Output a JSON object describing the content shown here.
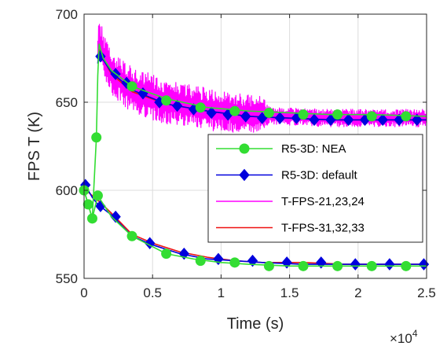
{
  "chart_data": {
    "type": "line",
    "xlabel": "Time (s)",
    "ylabel": "FPS T (K)",
    "x_multiplier": "×10",
    "x_multiplier_exponent": "4",
    "xlim": [
      0,
      25000
    ],
    "ylim": [
      550,
      700
    ],
    "xticks": [
      0,
      5000,
      10000,
      15000,
      20000,
      25000
    ],
    "xtick_labels": [
      "0",
      "0.5",
      "1",
      "1.5",
      "2",
      "2.5"
    ],
    "yticks": [
      550,
      600,
      650,
      700
    ],
    "ytick_labels": [
      "550",
      "600",
      "650",
      "700"
    ],
    "grid": true,
    "legend_position": "right",
    "series": [
      {
        "name": "R5-3D: NEA",
        "color": "#33dd33",
        "marker": "circle",
        "lines": [
          {
            "x": [
              0,
              300,
              600,
              900,
              1000,
              1100,
              1400,
              2000,
              3500,
              6000,
              9000,
              12000,
              15000,
              18000,
              21000,
              25000
            ],
            "y": [
              600,
              592,
              584,
              630,
              665,
              683,
              675,
              668,
              659,
              652,
              647,
              645,
              644,
              643,
              643,
              642
            ]
          },
          {
            "x": [
              0,
              300,
              600,
              1000,
              1500,
              2000,
              3500,
              5000,
              6000,
              8000,
              10000,
              12000,
              15000,
              18000,
              21000,
              25000
            ],
            "y": [
              600,
              592,
              584,
              597,
              591,
              585,
              574,
              568,
              564,
              561,
              559,
              558,
              557,
              557,
              557,
              557
            ]
          }
        ],
        "markers": [
          {
            "x": 0,
            "y": 600
          },
          {
            "x": 300,
            "y": 592
          },
          {
            "x": 600,
            "y": 584
          },
          {
            "x": 900,
            "y": 630
          },
          {
            "x": 3500,
            "y": 659
          },
          {
            "x": 6000,
            "y": 651
          },
          {
            "x": 8500,
            "y": 647
          },
          {
            "x": 11000,
            "y": 645
          },
          {
            "x": 13500,
            "y": 644
          },
          {
            "x": 16000,
            "y": 643
          },
          {
            "x": 18500,
            "y": 643
          },
          {
            "x": 21000,
            "y": 642
          },
          {
            "x": 23500,
            "y": 642
          },
          {
            "x": 1000,
            "y": 597
          },
          {
            "x": 3500,
            "y": 574
          },
          {
            "x": 6000,
            "y": 564
          },
          {
            "x": 8500,
            "y": 560
          },
          {
            "x": 11000,
            "y": 559
          },
          {
            "x": 13500,
            "y": 557
          },
          {
            "x": 16000,
            "y": 557
          },
          {
            "x": 18500,
            "y": 557
          },
          {
            "x": 21000,
            "y": 557
          },
          {
            "x": 23500,
            "y": 557
          }
        ]
      },
      {
        "name": "R5-3D: default",
        "color": "#0000dd",
        "marker": "diamond",
        "lines": [
          {
            "x": [
              1000,
              1100,
              1400,
              2000,
              3500,
              6000,
              9000,
              12000,
              15000,
              18000,
              21000,
              25000
            ],
            "y": [
              672,
              678,
              674,
              667,
              657,
              649,
              645,
              642,
              641,
              640,
              640,
              640
            ]
          },
          {
            "x": [
              0,
              300,
              600,
              1000,
              1500,
              2000,
              3500,
              5000,
              7000,
              9000,
              11000,
              13000,
              16000,
              19000,
              22000,
              25000
            ],
            "y": [
              603,
              600,
              596,
              592,
              589,
              586,
              574,
              569,
              564,
              561,
              560,
              559,
              558,
              558,
              558,
              558
            ]
          }
        ],
        "markers": [
          {
            "x": 1200,
            "y": 676
          },
          {
            "x": 2300,
            "y": 666
          },
          {
            "x": 3100,
            "y": 661
          },
          {
            "x": 4300,
            "y": 655
          },
          {
            "x": 5500,
            "y": 650
          },
          {
            "x": 6800,
            "y": 648
          },
          {
            "x": 8000,
            "y": 646
          },
          {
            "x": 9300,
            "y": 644
          },
          {
            "x": 10500,
            "y": 643
          },
          {
            "x": 11800,
            "y": 642
          },
          {
            "x": 13000,
            "y": 641
          },
          {
            "x": 14300,
            "y": 641
          },
          {
            "x": 15500,
            "y": 641
          },
          {
            "x": 16800,
            "y": 640
          },
          {
            "x": 18000,
            "y": 640
          },
          {
            "x": 19300,
            "y": 640
          },
          {
            "x": 20500,
            "y": 640
          },
          {
            "x": 21800,
            "y": 640
          },
          {
            "x": 23000,
            "y": 640
          },
          {
            "x": 24300,
            "y": 640
          },
          {
            "x": 100,
            "y": 603
          },
          {
            "x": 1200,
            "y": 591
          },
          {
            "x": 2300,
            "y": 585
          },
          {
            "x": 4800,
            "y": 570
          },
          {
            "x": 7300,
            "y": 564
          },
          {
            "x": 9800,
            "y": 561
          },
          {
            "x": 12300,
            "y": 560
          },
          {
            "x": 14800,
            "y": 559
          },
          {
            "x": 17300,
            "y": 559
          },
          {
            "x": 19800,
            "y": 558
          },
          {
            "x": 22300,
            "y": 558
          },
          {
            "x": 24800,
            "y": 558
          }
        ]
      },
      {
        "name": "T-FPS-21,23,24",
        "color": "#ff00ff",
        "marker": "none",
        "noisy": true,
        "noise_band_K": [
          {
            "x": 1000,
            "y": 13
          },
          {
            "x": 5000,
            "y": 13
          },
          {
            "x": 13000,
            "y": 11
          },
          {
            "x": 13500,
            "y": 5
          },
          {
            "x": 25000,
            "y": 5
          }
        ],
        "lines": [
          {
            "x": [
              1000,
              1050,
              1500,
              2000,
              3500,
              6000,
              9000,
              12000,
              15000,
              18000,
              21000,
              25000
            ],
            "y": [
              675,
              688,
              674,
              667,
              657,
              650,
              646,
              643,
              642,
              641,
              641,
              641
            ]
          }
        ]
      },
      {
        "name": "T-FPS-31,32,33",
        "color": "#ee1111",
        "marker": "none",
        "lines": [
          {
            "x": [
              1000,
              1100,
              1500,
              2000,
              3500,
              6000,
              9000,
              12000,
              15000,
              18000,
              21000,
              25000
            ],
            "y": [
              676,
              680,
              673,
              666,
              656,
              649,
              645,
              642,
              641,
              640,
              640,
              640
            ]
          },
          {
            "x": [
              0,
              600,
              1200,
              2000,
              3500,
              5000,
              7000,
              9000,
              11000,
              13000,
              16000,
              19000,
              22000,
              25000
            ],
            "y": [
              601,
              597,
              593,
              587,
              575,
              570,
              565,
              562,
              560,
              559,
              559,
              558,
              558,
              558
            ]
          }
        ]
      }
    ]
  }
}
